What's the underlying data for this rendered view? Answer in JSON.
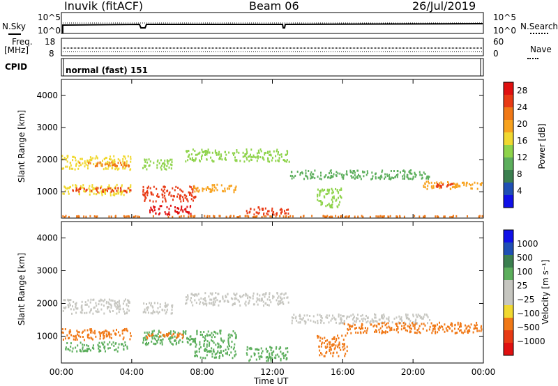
{
  "header": {
    "station": "Inuvik (fitACF)",
    "beam": "Beam 06",
    "date": "26/Jul/2019"
  },
  "nsky_panel": {
    "left_label": "N.Sky",
    "right_label": "N.Search",
    "left_ticks": [
      "10^5",
      "10^0"
    ],
    "right_ticks": [
      "10^5",
      "10^0"
    ]
  },
  "freq_panel": {
    "left_label_1": "Freq.",
    "left_label_2": "[MHz]",
    "right_label": "Nave",
    "left_ticks": [
      "18",
      "8"
    ],
    "right_ticks": [
      "60",
      "0"
    ]
  },
  "cpid": {
    "label": "CPID",
    "value": "normal (fast) 151"
  },
  "x_axis": {
    "ticks": [
      "00:00",
      "04:00",
      "08:00",
      "12:00",
      "16:00",
      "20:00",
      "00:00"
    ],
    "title": "Time UT"
  },
  "colors": {
    "power_scale": [
      "#1010e8",
      "#1f4fb4",
      "#3b7f4f",
      "#5cae5c",
      "#8ed34a",
      "#f0d830",
      "#f7a21e",
      "#f07816",
      "#e83a14",
      "#e01010"
    ],
    "velocity_scale": [
      "#1010e8",
      "#1f4fb4",
      "#3b7f4f",
      "#5cae5c",
      "#c6c6c0",
      "#c6c6c0",
      "#f0d830",
      "#f07816",
      "#e83a14",
      "#e01010"
    ],
    "ground_scatter": "#c6c6c0"
  },
  "chart_data": [
    {
      "type": "heatmap",
      "name": "power",
      "ylabel": "Slant Range [km]",
      "y_ticks": [
        "1000",
        "2000",
        "3000",
        "4000"
      ],
      "ylim": [
        180,
        4500
      ],
      "xlim": [
        "00:00",
        "24:00"
      ],
      "colorbar_label": "Power [dB]",
      "colorbar_ticks": [
        "4",
        "8",
        "12",
        "16",
        "20",
        "24",
        "28"
      ],
      "colorbar_range": [
        0,
        30
      ],
      "regions": [
        {
          "t0": 0.0,
          "t1": 4.0,
          "r0": 1650,
          "r1": 2150,
          "value": 15
        },
        {
          "t0": 1.0,
          "t1": 4.0,
          "r0": 1750,
          "r1": 1950,
          "value": 21
        },
        {
          "t0": 4.6,
          "t1": 6.4,
          "r0": 1650,
          "r1": 2050,
          "value": 14
        },
        {
          "t0": 0.0,
          "t1": 4.0,
          "r0": 850,
          "r1": 1250,
          "value": 16
        },
        {
          "t0": 0.4,
          "t1": 4.0,
          "r0": 950,
          "r1": 1150,
          "value": 24
        },
        {
          "t0": 4.6,
          "t1": 7.8,
          "r0": 650,
          "r1": 1200,
          "value": 25
        },
        {
          "t0": 5.0,
          "t1": 7.5,
          "r0": 250,
          "r1": 600,
          "value": 27
        },
        {
          "t0": 7.4,
          "t1": 10.0,
          "r0": 950,
          "r1": 1250,
          "value": 19
        },
        {
          "t0": 7.0,
          "t1": 13.0,
          "r0": 1900,
          "r1": 2350,
          "value": 13
        },
        {
          "t0": 10.5,
          "t1": 13.0,
          "r0": 250,
          "r1": 550,
          "value": 26
        },
        {
          "t0": 13.0,
          "t1": 21.0,
          "r0": 1350,
          "r1": 1700,
          "value": 10
        },
        {
          "t0": 14.5,
          "t1": 16.0,
          "r0": 450,
          "r1": 1150,
          "value": 12
        },
        {
          "t0": 20.5,
          "t1": 24.0,
          "r0": 1050,
          "r1": 1350,
          "value": 18
        },
        {
          "t0": 21.3,
          "t1": 22.3,
          "r0": 1100,
          "r1": 1300,
          "value": 26
        },
        {
          "t0": 0.0,
          "t1": 24.0,
          "r0": 180,
          "r1": 280,
          "value": 22
        }
      ]
    },
    {
      "type": "heatmap",
      "name": "velocity",
      "ylabel": "Slant Range [km]",
      "y_ticks": [
        "1000",
        "2000",
        "3000",
        "4000"
      ],
      "ylim": [
        180,
        4500
      ],
      "xlim": [
        "00:00",
        "24:00"
      ],
      "colorbar_label": "Velocity [m s⁻¹]",
      "colorbar_ticks": [
        "1000",
        "500",
        "100",
        "25",
        "−25",
        "−100",
        "−500",
        "−1000"
      ],
      "regions": [
        {
          "t0": 0.0,
          "t1": 4.0,
          "r0": 1650,
          "r1": 2150,
          "value": 0,
          "ground": true
        },
        {
          "t0": 4.6,
          "t1": 6.4,
          "r0": 1650,
          "r1": 2050,
          "value": 0,
          "ground": true
        },
        {
          "t0": 7.0,
          "t1": 13.0,
          "r0": 1900,
          "r1": 2350,
          "value": 0,
          "ground": true
        },
        {
          "t0": 13.0,
          "t1": 21.0,
          "r0": 1350,
          "r1": 1700,
          "value": 0,
          "ground": true
        },
        {
          "t0": 0.0,
          "t1": 4.0,
          "r0": 850,
          "r1": 1250,
          "value": -250
        },
        {
          "t0": 0.2,
          "t1": 3.8,
          "r0": 500,
          "r1": 850,
          "value": 150
        },
        {
          "t0": 4.6,
          "t1": 7.8,
          "r0": 700,
          "r1": 1200,
          "value": 120
        },
        {
          "t0": 4.8,
          "t1": 7.0,
          "r0": 900,
          "r1": 1150,
          "value": -300
        },
        {
          "t0": 7.5,
          "t1": 10.0,
          "r0": 300,
          "r1": 1200,
          "value": 400
        },
        {
          "t0": 10.5,
          "t1": 13.0,
          "r0": 200,
          "r1": 700,
          "value": 250
        },
        {
          "t0": 14.5,
          "t1": 16.3,
          "r0": 350,
          "r1": 1050,
          "value": -300
        },
        {
          "t0": 16.0,
          "t1": 24.0,
          "r0": 1050,
          "r1": 1450,
          "value": -300
        }
      ]
    }
  ]
}
